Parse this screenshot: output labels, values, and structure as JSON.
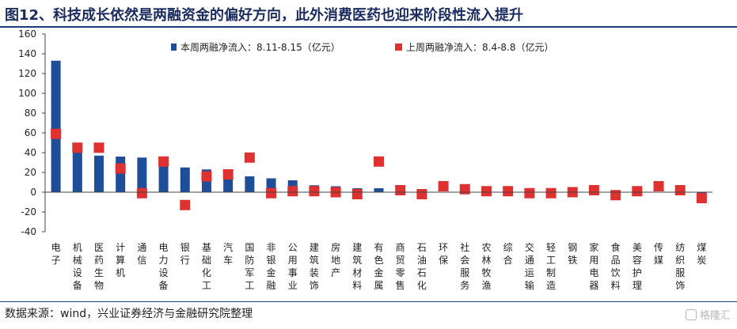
{
  "title": "图12、科技成长依然是两融资金的偏好方向，此外消费医药也迎来阶段性流入提升",
  "source": "数据来源：wind，兴业证券经济与金融研究院整理",
  "watermark": "格隆汇",
  "chart_data": {
    "type": "bar",
    "categories": [
      "电子",
      "机械设备",
      "医药生物",
      "计算机",
      "通信",
      "电力设备",
      "银行",
      "基础化工",
      "汽车",
      "国防军工",
      "非银金融",
      "公用事业",
      "建筑装饰",
      "房地产",
      "建筑材料",
      "有色金属",
      "商贸零售",
      "石油石化",
      "环保",
      "社会服务",
      "农林牧渔",
      "综合",
      "交通运输",
      "轻工制造",
      "钢铁",
      "家用电器",
      "食品饮料",
      "美容护理",
      "传媒",
      "纺织服饰",
      "煤炭"
    ],
    "series": [
      {
        "name": "本周两融净流入：8.11-8.15（亿元）",
        "kind": "bar",
        "color": "#1f4e99",
        "values": [
          133,
          41,
          37,
          36,
          35,
          27,
          25,
          23,
          15,
          16,
          14,
          12,
          7,
          6,
          4,
          4,
          1,
          3,
          0,
          0,
          0,
          0,
          0,
          0,
          0,
          0,
          0,
          0,
          0,
          0,
          -1
        ]
      },
      {
        "name": "上周两融净流入：8.4-8.8（亿元）",
        "kind": "marker",
        "color": "#e03131",
        "values": [
          59,
          45,
          45,
          24,
          -1,
          31,
          -13,
          16,
          18,
          35,
          -1,
          1,
          1,
          0,
          -2,
          31,
          2,
          -2,
          6,
          3,
          1,
          1,
          -1,
          -1,
          0,
          2,
          -3,
          1,
          6,
          2,
          -6
        ]
      }
    ],
    "ylim": [
      -40,
      160
    ],
    "yticks": [
      -40,
      -20,
      0,
      20,
      40,
      60,
      80,
      100,
      120,
      140,
      160
    ],
    "grid": false,
    "legend_position": "top"
  }
}
